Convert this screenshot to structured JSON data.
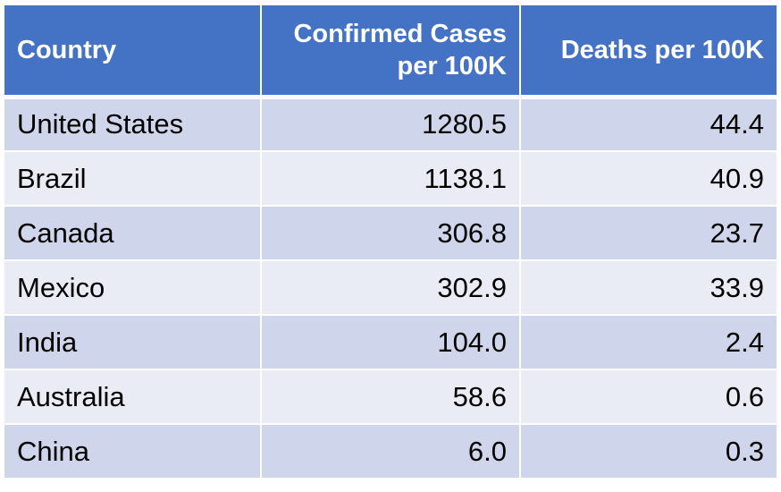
{
  "table": {
    "headers": {
      "country": "Country",
      "cases_line1": "Confirmed Cases",
      "cases_line2": "per 100K",
      "deaths": "Deaths per 100K"
    },
    "rows": [
      {
        "country": "United States",
        "cases": "1280.5",
        "deaths": "44.4"
      },
      {
        "country": "Brazil",
        "cases": "1138.1",
        "deaths": "40.9"
      },
      {
        "country": "Canada",
        "cases": "306.8",
        "deaths": "23.7"
      },
      {
        "country": "Mexico",
        "cases": "302.9",
        "deaths": "33.9"
      },
      {
        "country": "India",
        "cases": "104.0",
        "deaths": "2.4"
      },
      {
        "country": "Australia",
        "cases": "58.6",
        "deaths": "0.6"
      },
      {
        "country": "China",
        "cases": "6.0",
        "deaths": "0.3"
      }
    ],
    "colors": {
      "header_bg": "#4472c4",
      "header_text": "#ffffff",
      "row_band_dark": "#cfd5ea",
      "row_band_light": "#e9ebf5"
    }
  }
}
